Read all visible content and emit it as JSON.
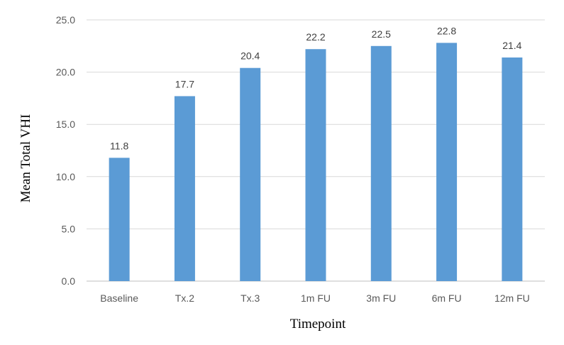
{
  "chart_data": {
    "type": "bar",
    "title": "",
    "xlabel": "Timepoint",
    "ylabel": "Mean Total VHI",
    "categories": [
      "Baseline",
      "Tx.2",
      "Tx.3",
      "1m FU",
      "3m FU",
      "6m FU",
      "12m FU"
    ],
    "values": [
      11.8,
      17.7,
      20.4,
      22.2,
      22.5,
      22.8,
      21.4
    ],
    "data_labels": [
      "11.8",
      "17.7",
      "20.4",
      "22.2",
      "22.5",
      "22.8",
      "21.4"
    ],
    "ylim": [
      0,
      25
    ],
    "yticks": [
      "0.0",
      "5.0",
      "10.0",
      "15.0",
      "20.0",
      "25.0"
    ],
    "ytick_values": [
      0,
      5,
      10,
      15,
      20,
      25
    ],
    "grid": true,
    "legend": "none",
    "bar_color": "#5b9bd5"
  }
}
